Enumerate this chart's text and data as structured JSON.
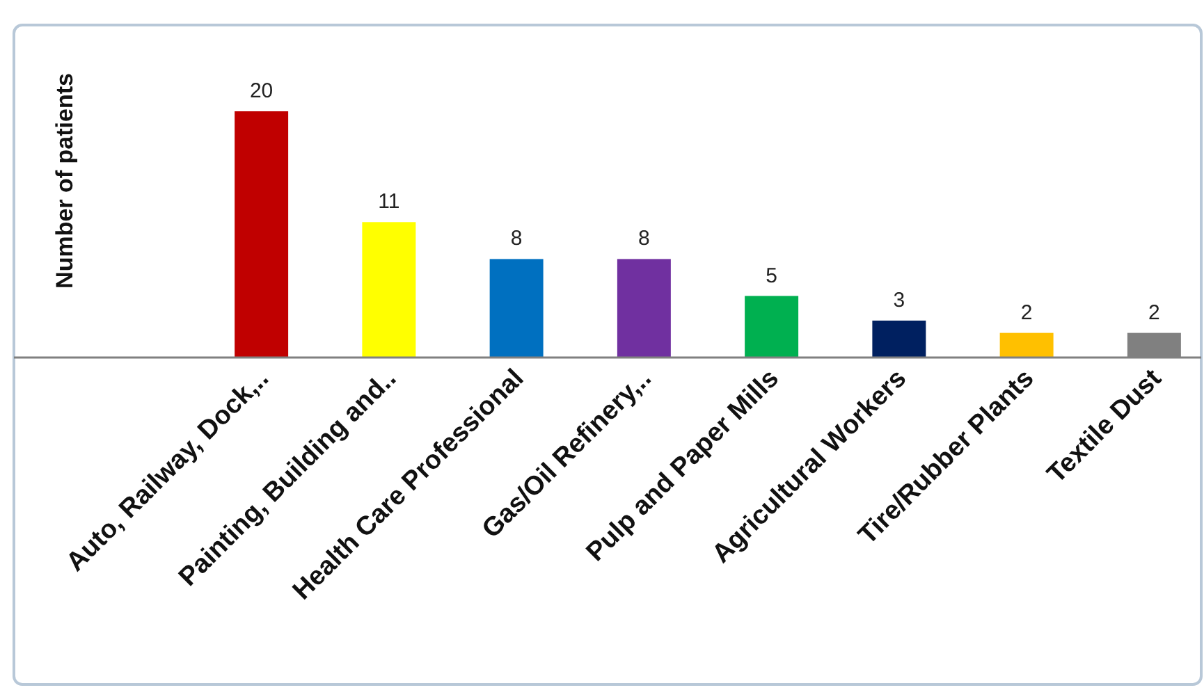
{
  "chart_data": {
    "type": "bar",
    "ylabel": "Number of patients",
    "categories": [
      "Auto, Railway, Dock,..",
      "Painting, Building and..",
      "Health Care Professional",
      "Gas/Oil Refinery,..",
      "Pulp and Paper Mills",
      "Agricultural Workers",
      "Tire/Rubber Plants",
      "Textile Dust"
    ],
    "values": [
      20,
      11,
      8,
      8,
      5,
      3,
      2,
      2
    ],
    "colors": [
      "#c00000",
      "#ffff00",
      "#0070c0",
      "#7030a0",
      "#00b050",
      "#002060",
      "#ffc000",
      "#808080"
    ],
    "data_labels": true
  }
}
